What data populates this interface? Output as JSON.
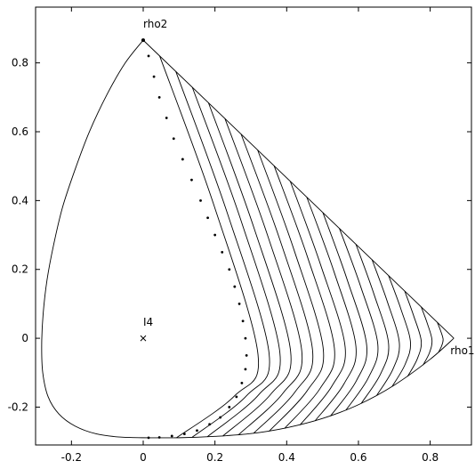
{
  "chart_data": {
    "type": "line",
    "xlim": [
      -0.3,
      0.915
    ],
    "ylim": [
      -0.31,
      0.962
    ],
    "xticks": [
      -0.2,
      0,
      0.2,
      0.4,
      0.6,
      0.8
    ],
    "yticks": [
      -0.2,
      0,
      0.2,
      0.4,
      0.6,
      0.8
    ],
    "color": "#000000",
    "series": [
      {
        "style": "line",
        "x": [
          0,
          -0.05,
          -0.1,
          -0.15,
          -0.19,
          -0.225,
          -0.25,
          -0.268,
          -0.279,
          -0.283,
          -0.28,
          -0.265,
          -0.235,
          -0.19,
          -0.13,
          -0.065,
          0
        ],
        "y": [
          0.866,
          0.8,
          0.71,
          0.6,
          0.49,
          0.38,
          0.27,
          0.17,
          0.07,
          -0.02,
          -0.1,
          -0.17,
          -0.22,
          -0.255,
          -0.278,
          -0.287,
          -0.289
        ]
      },
      {
        "style": "line",
        "x": [
          0,
          0.1,
          0.2,
          0.3,
          0.4,
          0.5,
          0.6,
          0.7,
          0.8,
          0.866
        ],
        "y": [
          -0.289,
          -0.289,
          -0.285,
          -0.277,
          -0.26,
          -0.233,
          -0.193,
          -0.136,
          -0.061,
          0
        ]
      },
      {
        "style": "line",
        "x": [
          0,
          0.866
        ],
        "y": [
          0.866,
          0
        ]
      },
      {
        "style": "line",
        "x": [
          0.046,
          0.197,
          0.32,
          0.254,
          0.093
        ],
        "y": [
          0.82,
          0.387,
          -0.047,
          -0.168,
          -0.289
        ]
      },
      {
        "style": "line",
        "x": [
          0.091,
          0.234,
          0.351,
          0.288,
          0.136
        ],
        "y": [
          0.775,
          0.365,
          -0.045,
          -0.167,
          -0.288
        ]
      },
      {
        "style": "line",
        "x": [
          0.137,
          0.272,
          0.381,
          0.322,
          0.179
        ],
        "y": [
          0.729,
          0.344,
          -0.042,
          -0.164,
          -0.286
        ]
      },
      {
        "style": "line",
        "x": [
          0.182,
          0.308,
          0.411,
          0.356,
          0.222
        ],
        "y": [
          0.684,
          0.323,
          -0.039,
          -0.162,
          -0.284
        ]
      },
      {
        "style": "line",
        "x": [
          0.228,
          0.346,
          0.442,
          0.39,
          0.265
        ],
        "y": [
          0.638,
          0.301,
          -0.037,
          -0.159,
          -0.281
        ]
      },
      {
        "style": "line",
        "x": [
          0.273,
          0.383,
          0.472,
          0.424,
          0.308
        ],
        "y": [
          0.593,
          0.28,
          -0.034,
          -0.155,
          -0.276
        ]
      },
      {
        "style": "line",
        "x": [
          0.319,
          0.42,
          0.502,
          0.458,
          0.351
        ],
        "y": [
          0.547,
          0.258,
          -0.032,
          -0.151,
          -0.27
        ]
      },
      {
        "style": "line",
        "x": [
          0.365,
          0.458,
          0.533,
          0.493,
          0.394
        ],
        "y": [
          0.501,
          0.236,
          -0.029,
          -0.146,
          -0.262
        ]
      },
      {
        "style": "line",
        "x": [
          0.41,
          0.494,
          0.563,
          0.526,
          0.437
        ],
        "y": [
          0.456,
          0.215,
          -0.026,
          -0.139,
          -0.252
        ]
      },
      {
        "style": "line",
        "x": [
          0.456,
          0.532,
          0.593,
          0.56,
          0.479
        ],
        "y": [
          0.41,
          0.193,
          -0.024,
          -0.132,
          -0.24
        ]
      },
      {
        "style": "line",
        "x": [
          0.501,
          0.568,
          0.623,
          0.594,
          0.522
        ],
        "y": [
          0.365,
          0.172,
          -0.021,
          -0.124,
          -0.226
        ]
      },
      {
        "style": "line",
        "x": [
          0.547,
          0.606,
          0.654,
          0.628,
          0.565
        ],
        "y": [
          0.319,
          0.151,
          -0.018,
          -0.114,
          -0.209
        ]
      },
      {
        "style": "line",
        "x": [
          0.593,
          0.643,
          0.684,
          0.662,
          0.608
        ],
        "y": [
          0.273,
          0.129,
          -0.016,
          -0.103,
          -0.189
        ]
      },
      {
        "style": "line",
        "x": [
          0.638,
          0.68,
          0.714,
          0.696,
          0.651
        ],
        "y": [
          0.228,
          0.108,
          -0.013,
          -0.09,
          -0.166
        ]
      },
      {
        "style": "line",
        "x": [
          0.684,
          0.718,
          0.745,
          0.73,
          0.694
        ],
        "y": [
          0.182,
          0.086,
          -0.011,
          -0.076,
          -0.14
        ]
      },
      {
        "style": "line",
        "x": [
          0.729,
          0.754,
          0.775,
          0.764,
          0.737
        ],
        "y": [
          0.137,
          0.065,
          -0.008,
          -0.06,
          -0.111
        ]
      },
      {
        "style": "line",
        "x": [
          0.775,
          0.792,
          0.805,
          0.798,
          0.78
        ],
        "y": [
          0.091,
          0.043,
          -0.005,
          -0.042,
          -0.078
        ]
      },
      {
        "style": "line",
        "x": [
          0.82,
          0.829,
          0.836,
          0.832,
          0.823
        ],
        "y": [
          0.046,
          0.022,
          -0.003,
          -0.022,
          -0.041
        ]
      },
      {
        "style": "dots",
        "x": [
          0.015,
          0.03,
          0.045,
          0.065,
          0.085,
          0.11,
          0.135,
          0.16,
          0.18,
          0.2,
          0.22,
          0.24,
          0.255,
          0.268,
          0.278,
          0.285,
          0.288,
          0.285,
          0.275,
          0.26,
          0.24,
          0.215,
          0.185,
          0.15,
          0.115,
          0.08,
          0.045,
          0.015
        ],
        "y": [
          0.82,
          0.76,
          0.7,
          0.64,
          0.58,
          0.52,
          0.46,
          0.4,
          0.35,
          0.3,
          0.25,
          0.2,
          0.15,
          0.1,
          0.05,
          0,
          -0.05,
          -0.09,
          -0.13,
          -0.17,
          -0.2,
          -0.23,
          -0.25,
          -0.268,
          -0.278,
          -0.284,
          -0.288,
          -0.289
        ]
      },
      {
        "style": "point",
        "x": [
          0
        ],
        "y": [
          0.866
        ]
      },
      {
        "style": "cross",
        "x": [
          0
        ],
        "y": [
          0
        ]
      }
    ],
    "annotations": [
      {
        "text": "rho2",
        "x": 0,
        "y": 0.866
      },
      {
        "text": "rho1",
        "x": 0.866,
        "y": 0
      },
      {
        "text": "I4",
        "x": 0,
        "y": 0
      }
    ]
  }
}
